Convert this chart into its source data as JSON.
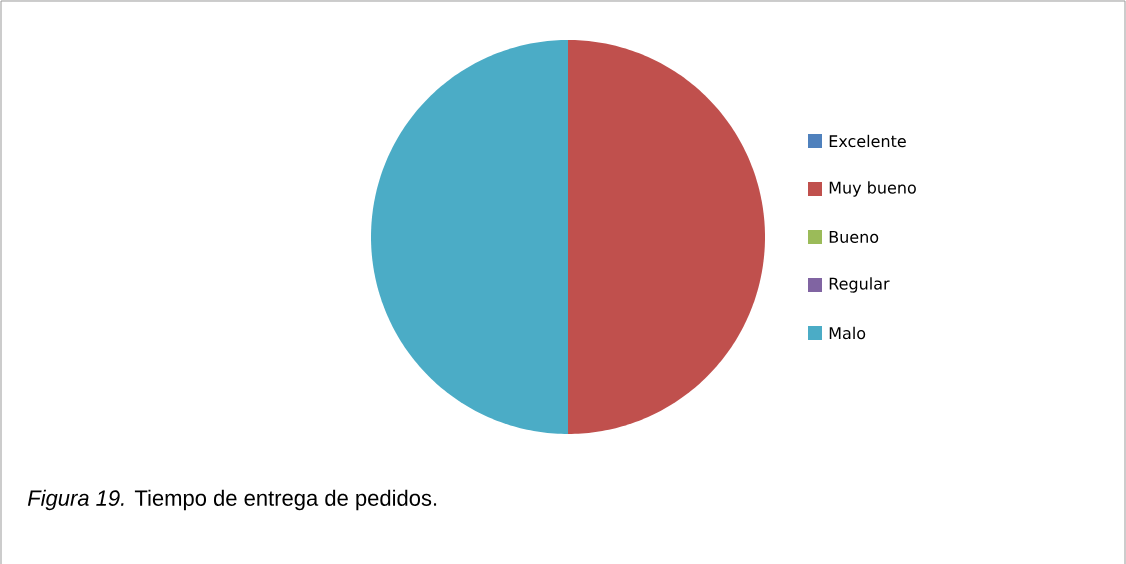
{
  "chart_data": {
    "type": "pie",
    "categories": [
      "Excelente",
      "Muy bueno",
      "Bueno",
      "Regular",
      "Malo"
    ],
    "values": [
      0,
      50,
      0,
      0,
      50
    ],
    "colors": [
      "#4f81bd",
      "#c0504d",
      "#9bbb59",
      "#8064a2",
      "#4bacc6"
    ],
    "legend": "right",
    "annotations": [
      "*Figura 19.* Tiempo de entrega de pedidos."
    ]
  }
}
